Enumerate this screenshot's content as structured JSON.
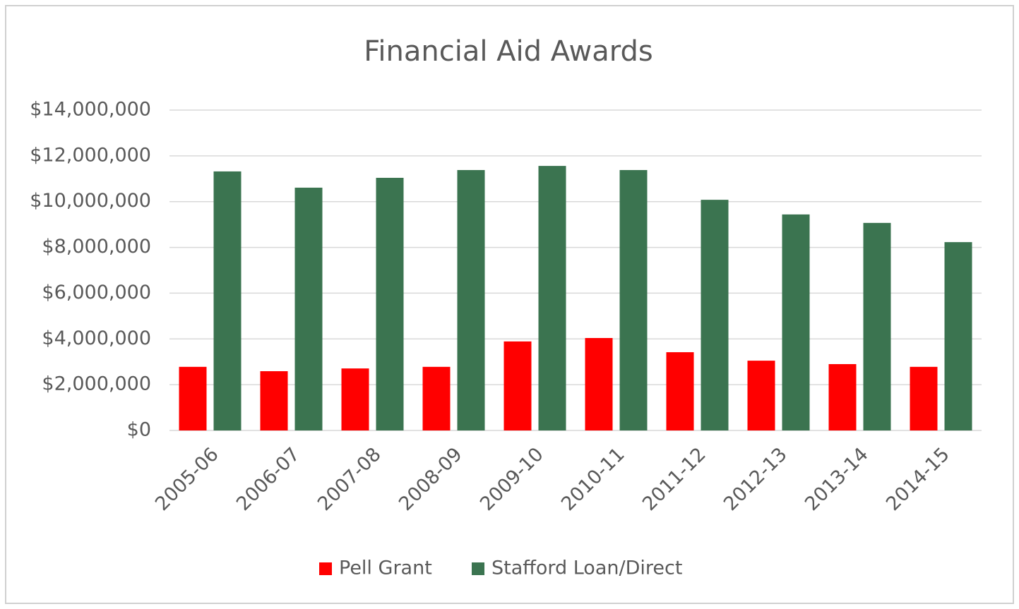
{
  "chart_data": {
    "type": "bar",
    "title": "Financial Aid Awards",
    "categories": [
      "2005-06",
      "2006-07",
      "2007-08",
      "2008-09",
      "2009-10",
      "2010-11",
      "2011-12",
      "2012-13",
      "2013-14",
      "2014-15"
    ],
    "series": [
      {
        "name": "Pell Grant",
        "color": "#ff0000",
        "values": [
          2780000,
          2590000,
          2710000,
          2780000,
          3890000,
          4040000,
          3420000,
          3050000,
          2900000,
          2780000
        ]
      },
      {
        "name": "Stafford Loan/Direct",
        "color": "#3b7450",
        "values": [
          11320000,
          10610000,
          11040000,
          11380000,
          11560000,
          11380000,
          10080000,
          9440000,
          9070000,
          8230000
        ]
      }
    ],
    "ylim": [
      0,
      14000000
    ],
    "yticks": [
      {
        "value": 0,
        "label": "$0"
      },
      {
        "value": 2000000,
        "label": "$2,000,000"
      },
      {
        "value": 4000000,
        "label": "$4,000,000"
      },
      {
        "value": 6000000,
        "label": "$6,000,000"
      },
      {
        "value": 8000000,
        "label": "$8,000,000"
      },
      {
        "value": 10000000,
        "label": "$10,000,000"
      },
      {
        "value": 12000000,
        "label": "$12,000,000"
      },
      {
        "value": 14000000,
        "label": "$14,000,000"
      }
    ],
    "grid": true,
    "legend": "bottom"
  }
}
